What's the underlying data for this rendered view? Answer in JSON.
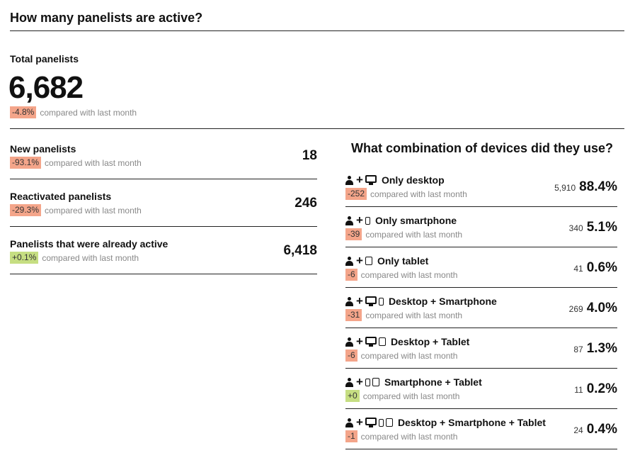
{
  "title": "How many panelists are active?",
  "total": {
    "label": "Total panelists",
    "value": "6,682",
    "delta": "-4.8%",
    "compare": "compared with last month"
  },
  "panelists": [
    {
      "label": "New panelists",
      "delta": "-93.1%",
      "delta_sign": "neg",
      "compare": "compared with last month",
      "value": "18"
    },
    {
      "label": "Reactivated panelists",
      "delta": "-29.3%",
      "delta_sign": "neg",
      "compare": "compared with last month",
      "value": "246"
    },
    {
      "label": "Panelists that were already active",
      "delta": "+0.1%",
      "delta_sign": "pos",
      "compare": "compared with last month",
      "value": "6,418"
    }
  ],
  "devices": {
    "title": "What combination of devices did they use?",
    "rows": [
      {
        "name": "Only desktop",
        "icons": [
          "desktop-icon"
        ],
        "delta": "-252",
        "delta_sign": "neg",
        "compare": "compared with last month",
        "count": "5,910",
        "pct": "88.4%"
      },
      {
        "name": "Only smartphone",
        "icons": [
          "smartphone-icon"
        ],
        "delta": "-39",
        "delta_sign": "neg",
        "compare": "compared with last month",
        "count": "340",
        "pct": "5.1%"
      },
      {
        "name": "Only tablet",
        "icons": [
          "tablet-icon"
        ],
        "delta": "-6",
        "delta_sign": "neg",
        "compare": "compared with last month",
        "count": "41",
        "pct": "0.6%"
      },
      {
        "name": "Desktop + Smartphone",
        "icons": [
          "desktop-icon",
          "smartphone-icon"
        ],
        "delta": "-31",
        "delta_sign": "neg",
        "compare": "compared with last month",
        "count": "269",
        "pct": "4.0%"
      },
      {
        "name": "Desktop + Tablet",
        "icons": [
          "desktop-icon",
          "tablet-icon"
        ],
        "delta": "-6",
        "delta_sign": "neg",
        "compare": "compared with last month",
        "count": "87",
        "pct": "1.3%"
      },
      {
        "name": "Smartphone + Tablet",
        "icons": [
          "smartphone-icon",
          "tablet-icon"
        ],
        "delta": "+0",
        "delta_sign": "pos",
        "compare": "compared with last month",
        "count": "11",
        "pct": "0.2%"
      },
      {
        "name": "Desktop + Smartphone + Tablet",
        "icons": [
          "desktop-icon",
          "smartphone-icon",
          "tablet-icon"
        ],
        "delta": "-1",
        "delta_sign": "neg",
        "compare": "compared with last month",
        "count": "24",
        "pct": "0.4%"
      }
    ]
  },
  "colors": {
    "negative_badge": "#f4a58a",
    "positive_badge": "#c6de82"
  }
}
